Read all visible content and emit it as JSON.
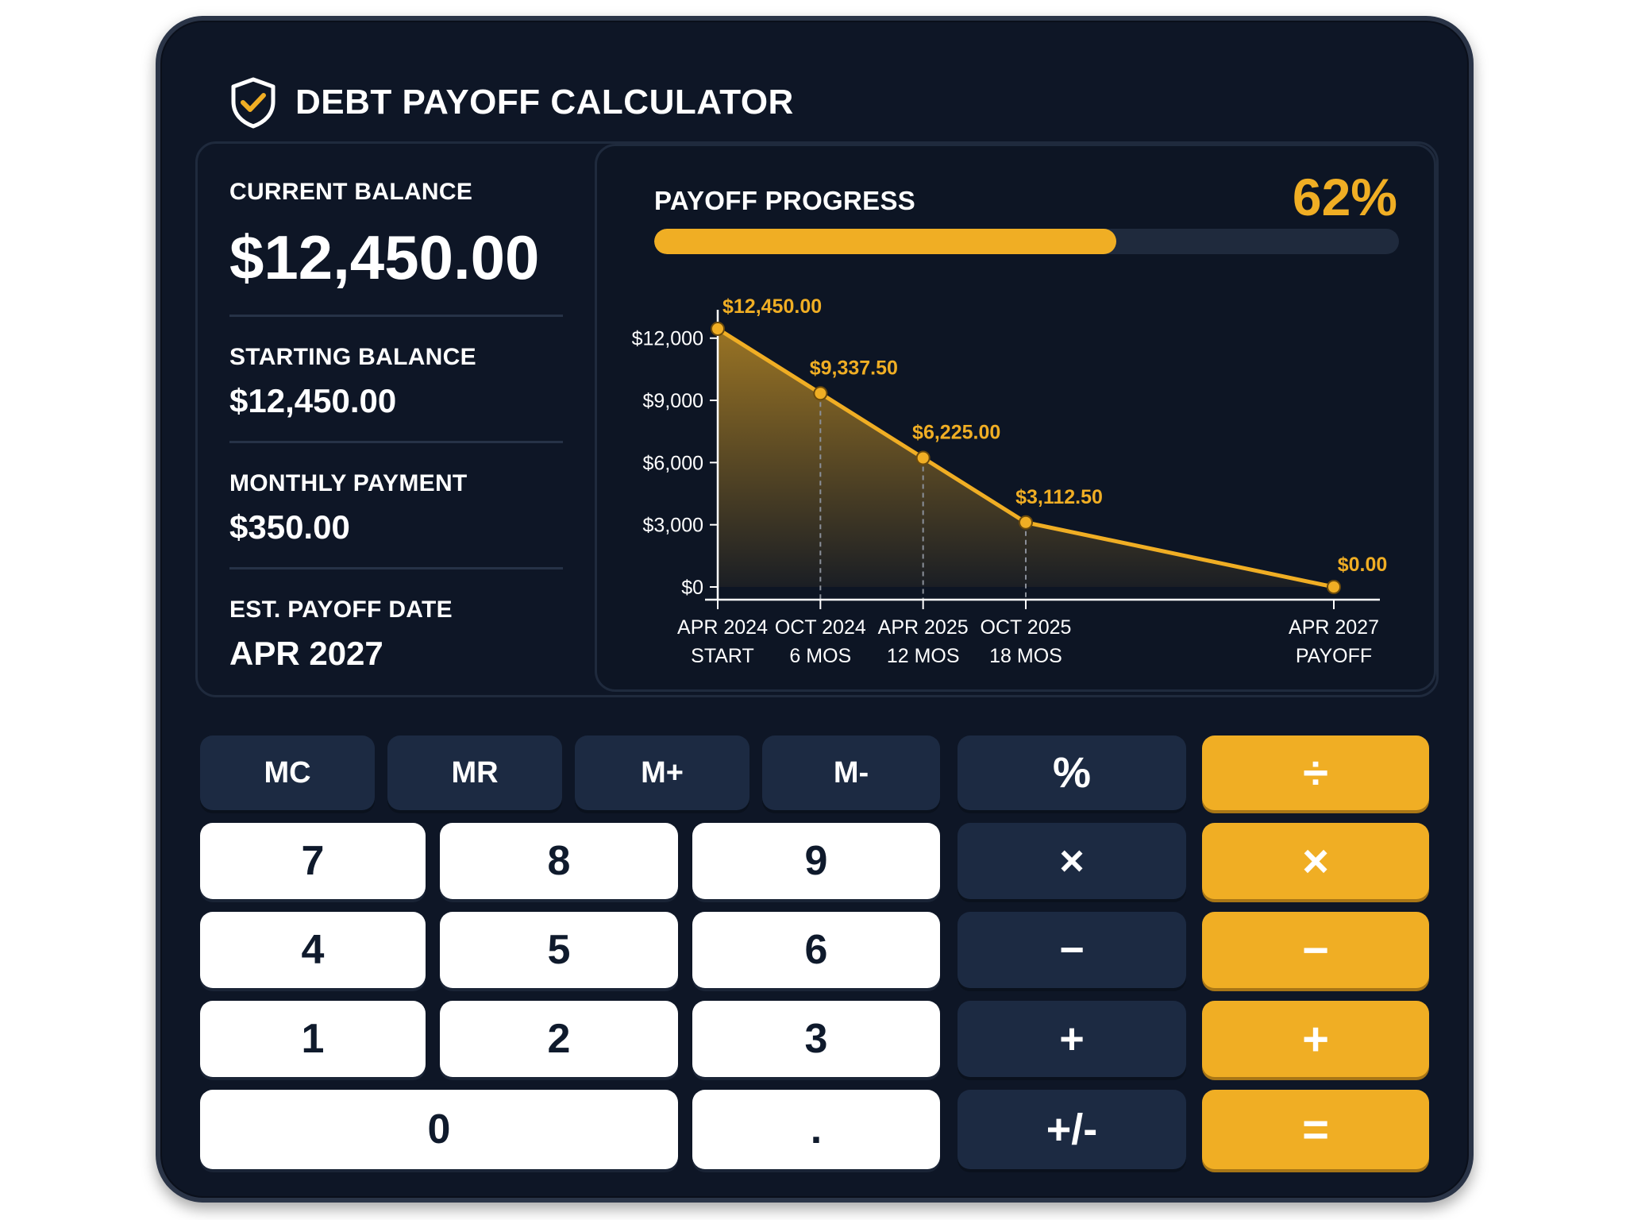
{
  "app": {
    "title": "DEBT PAYOFF CALCULATOR",
    "icon": "shield-check-icon"
  },
  "colors": {
    "accent": "#f0ae24",
    "panel": "#0e1626",
    "key_dark": "#1c2a42",
    "key_light": "#ffffff"
  },
  "summary": {
    "current_balance_label": "CURRENT BALANCE",
    "current_balance": "$12,450.00",
    "starting_balance_label": "STARTING BALANCE",
    "starting_balance": "$12,450.00",
    "monthly_payment_label": "MONTHLY PAYMENT",
    "monthly_payment": "$350.00",
    "payoff_date_label": "EST. PAYOFF DATE",
    "payoff_date": "APR 2027"
  },
  "progress": {
    "label": "PAYOFF PROGRESS",
    "percent_text": "62%",
    "percent": 62
  },
  "chart_data": {
    "type": "area",
    "title": "",
    "xlabel": "",
    "ylabel": "",
    "categories": [
      "APR 2024",
      "OCT 2024",
      "APR 2025",
      "OCT 2025",
      "APR 2027"
    ],
    "category_sublabels": [
      "START",
      "6 MOS",
      "12 MOS",
      "18 MOS",
      "PAYOFF"
    ],
    "x_months": [
      0,
      6,
      12,
      18,
      36
    ],
    "values": [
      12450,
      9337.5,
      6225,
      3112.5,
      0
    ],
    "data_labels": [
      "$12,450.00",
      "$9,337.50",
      "$6,225.00",
      "$3,112.50",
      "$0.00"
    ],
    "y_ticks": [
      0,
      3000,
      6000,
      9000,
      12000
    ],
    "y_tick_labels": [
      "$0",
      "$3,000",
      "$6,000",
      "$9,000",
      "$12,000"
    ],
    "ylim": [
      0,
      12450
    ],
    "grid": false,
    "legend": "none"
  },
  "keypad": {
    "memory": [
      "MC",
      "MR",
      "M+",
      "M-"
    ],
    "percent": "%",
    "divide": "÷",
    "multiply_dark": "×",
    "multiply_accent": "×",
    "minus_dark": "−",
    "minus_accent": "−",
    "plus_dark": "+",
    "plus_accent": "+",
    "sign": "+/-",
    "equals": "=",
    "digits": {
      "d7": "7",
      "d8": "8",
      "d9": "9",
      "d4": "4",
      "d5": "5",
      "d6": "6",
      "d1": "1",
      "d2": "2",
      "d3": "3",
      "d0": "0",
      "dot": "."
    }
  }
}
